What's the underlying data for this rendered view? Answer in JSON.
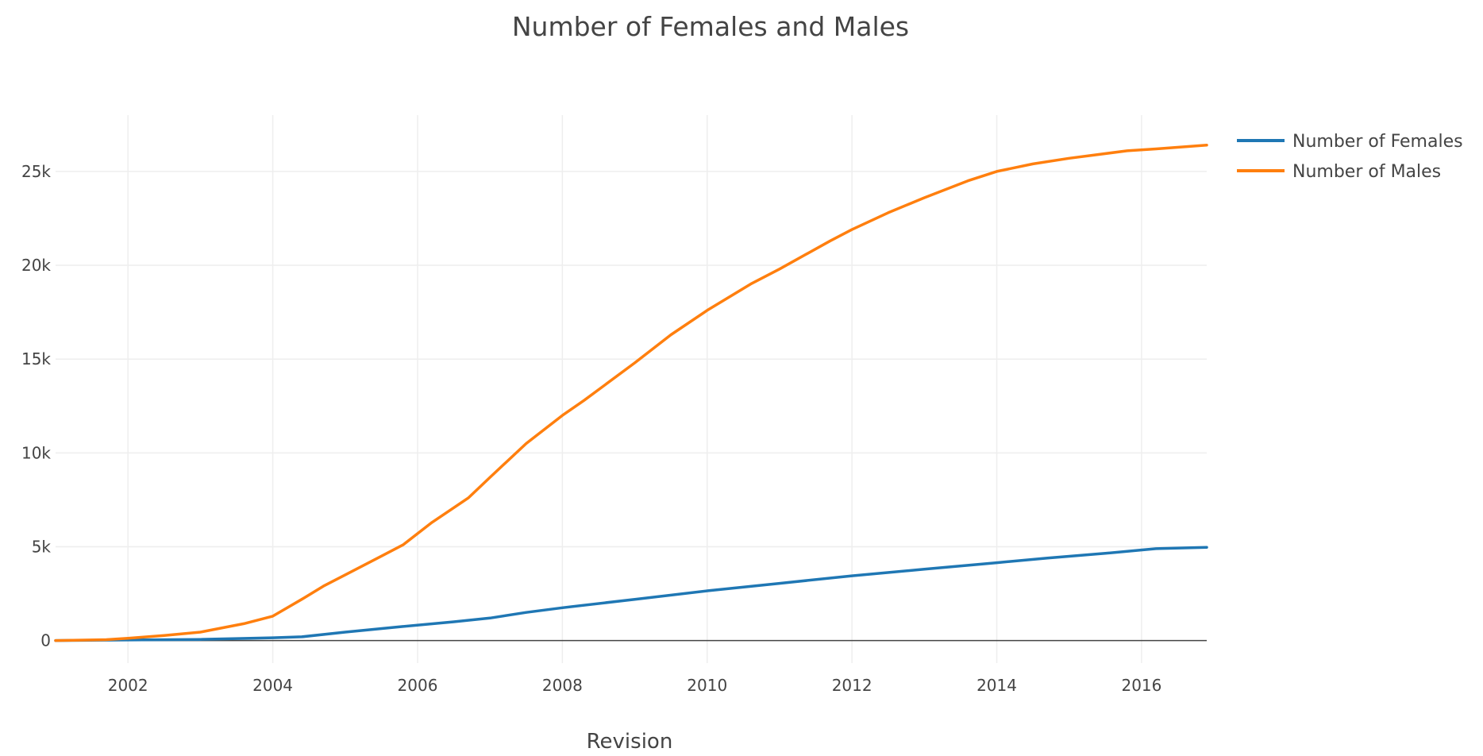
{
  "chart_data": {
    "type": "line",
    "title": "Number of Females and Males",
    "xlabel": "Revision",
    "ylabel": "",
    "xlim": [
      2001.0,
      2016.9
    ],
    "ylim": [
      -1200,
      28000
    ],
    "x_ticks": [
      2002,
      2004,
      2006,
      2008,
      2010,
      2012,
      2014,
      2016
    ],
    "x_tick_labels": [
      "2002",
      "2004",
      "2006",
      "2008",
      "2010",
      "2012",
      "2014",
      "2016"
    ],
    "y_ticks": [
      0,
      5000,
      10000,
      15000,
      20000,
      25000
    ],
    "y_tick_labels": [
      "0",
      "5k",
      "10k",
      "15k",
      "20k",
      "25k"
    ],
    "grid": true,
    "legend_position": "top-right",
    "series": [
      {
        "name": "Number of Females",
        "color": "#1f77b4",
        "x": [
          2001.0,
          2002.0,
          2003.0,
          2004.0,
          2004.4,
          2005.0,
          2005.8,
          2006.5,
          2007.0,
          2007.5,
          2008.0,
          2009.0,
          2010.0,
          2011.0,
          2012.0,
          2013.0,
          2014.0,
          2014.7,
          2015.5,
          2016.2,
          2016.9
        ],
        "values": [
          0,
          30,
          60,
          150,
          200,
          450,
          750,
          1000,
          1200,
          1500,
          1750,
          2200,
          2650,
          3050,
          3450,
          3800,
          4150,
          4400,
          4650,
          4900,
          4970
        ]
      },
      {
        "name": "Number of Males",
        "color": "#ff7f0e",
        "x": [
          2001.0,
          2001.7,
          2002.0,
          2002.5,
          2003.0,
          2003.6,
          2004.0,
          2004.4,
          2004.7,
          2005.0,
          2005.5,
          2005.8,
          2006.2,
          2006.7,
          2007.0,
          2007.5,
          2008.0,
          2008.3,
          2009.0,
          2009.5,
          2010.0,
          2010.6,
          2011.0,
          2011.7,
          2012.0,
          2012.5,
          2013.0,
          2013.6,
          2014.0,
          2014.5,
          2015.0,
          2015.8,
          2016.2,
          2016.9
        ],
        "values": [
          0,
          50,
          120,
          270,
          450,
          900,
          1300,
          2200,
          2900,
          3500,
          4500,
          5100,
          6300,
          7600,
          8700,
          10500,
          12000,
          12800,
          14800,
          16300,
          17600,
          19000,
          19800,
          21300,
          21900,
          22800,
          23600,
          24500,
          25000,
          25400,
          25700,
          26100,
          26200,
          26400
        ]
      }
    ]
  }
}
